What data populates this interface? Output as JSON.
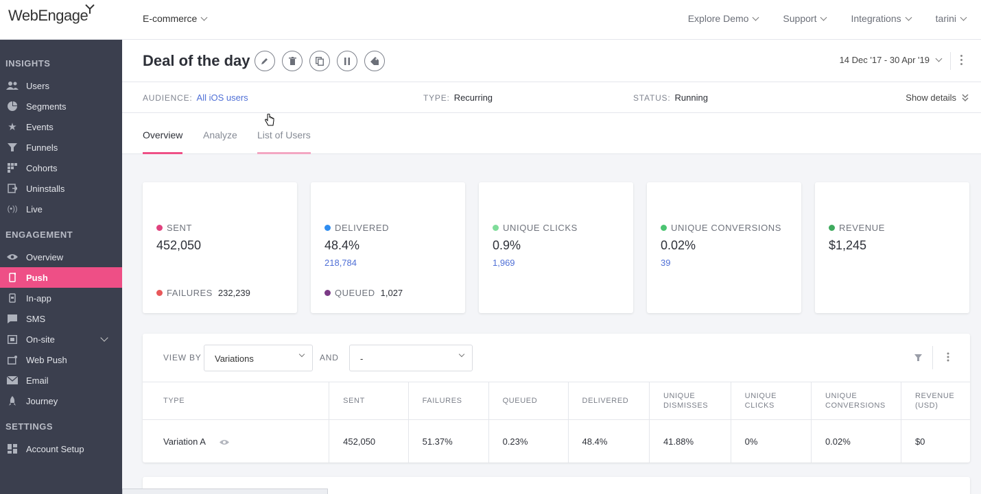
{
  "brand": {
    "logo": "WebEngage"
  },
  "topbar": {
    "project": "E-commerce",
    "nav": [
      "Explore Demo",
      "Support",
      "Integrations",
      "tarini"
    ]
  },
  "sidebar": {
    "sections": [
      {
        "title": "INSIGHTS",
        "items": [
          {
            "label": "Users",
            "icon": "users-icon"
          },
          {
            "label": "Segments",
            "icon": "pie-icon"
          },
          {
            "label": "Events",
            "icon": "star-icon"
          },
          {
            "label": "Funnels",
            "icon": "funnel-icon"
          },
          {
            "label": "Cohorts",
            "icon": "grid-icon"
          },
          {
            "label": "Uninstalls",
            "icon": "uninstall-icon"
          },
          {
            "label": "Live",
            "icon": "broadcast-icon"
          }
        ]
      },
      {
        "title": "ENGAGEMENT",
        "items": [
          {
            "label": "Overview",
            "icon": "eye-icon"
          },
          {
            "label": "Push",
            "icon": "mobile-icon",
            "active": true
          },
          {
            "label": "In-app",
            "icon": "inapp-icon"
          },
          {
            "label": "SMS",
            "icon": "chat-icon"
          },
          {
            "label": "On-site",
            "icon": "window-icon",
            "expandable": true
          },
          {
            "label": "Web Push",
            "icon": "webpush-icon"
          },
          {
            "label": "Email",
            "icon": "mail-icon"
          },
          {
            "label": "Journey",
            "icon": "rocket-icon"
          }
        ]
      },
      {
        "title": "SETTINGS",
        "items": [
          {
            "label": "Account Setup",
            "icon": "dashboard-icon"
          }
        ]
      }
    ]
  },
  "campaign": {
    "title": "Deal of the day",
    "date_range": "14 Dec '17 - 30 Apr '19",
    "audience_label": "AUDIENCE:",
    "audience": "All iOS users",
    "type_label": "TYPE:",
    "type": "Recurring",
    "status_label": "STATUS:",
    "status": "Running",
    "show_details": "Show details"
  },
  "tabs": [
    "Overview",
    "Analyze",
    "List of Users"
  ],
  "colors": {
    "accent": "#ee4f86",
    "sidebar": "#3b3f4e",
    "link": "#4f6fd6"
  },
  "stats": [
    {
      "label": "SENT",
      "value": "452,050",
      "dot": "#e0427e",
      "foot_label": "FAILURES",
      "foot_value": "232,239",
      "foot_dot": "#e8585a"
    },
    {
      "label": "DELIVERED",
      "value": "48.4%",
      "sub": "218,784",
      "dot": "#2f8df0",
      "foot_label": "QUEUED",
      "foot_value": "1,027",
      "foot_dot": "#7b3a86"
    },
    {
      "label": "UNIQUE CLICKS",
      "value": "0.9%",
      "sub": "1,969",
      "dot": "#7fdc9a"
    },
    {
      "label": "UNIQUE CONVERSIONS",
      "value": "0.02%",
      "sub": "39",
      "dot": "#4bc472"
    },
    {
      "label": "REVENUE",
      "value": "$1,245",
      "dot": "#3faa5e"
    }
  ],
  "table": {
    "view_by_label": "VIEW BY",
    "view_by_value": "Variations",
    "and_label": "AND",
    "and_value": "-",
    "headers": [
      "TYPE",
      "SENT",
      "FAILURES",
      "QUEUED",
      "DELIVERED",
      "UNIQUE DISMISSES",
      "UNIQUE CLICKS",
      "UNIQUE CONVERSIONS",
      "REVENUE (USD)"
    ],
    "rows": [
      [
        "Variation A",
        "452,050",
        "51.37%",
        "0.23%",
        "48.4%",
        "41.88%",
        "0%",
        "0.02%",
        "$0"
      ]
    ]
  }
}
